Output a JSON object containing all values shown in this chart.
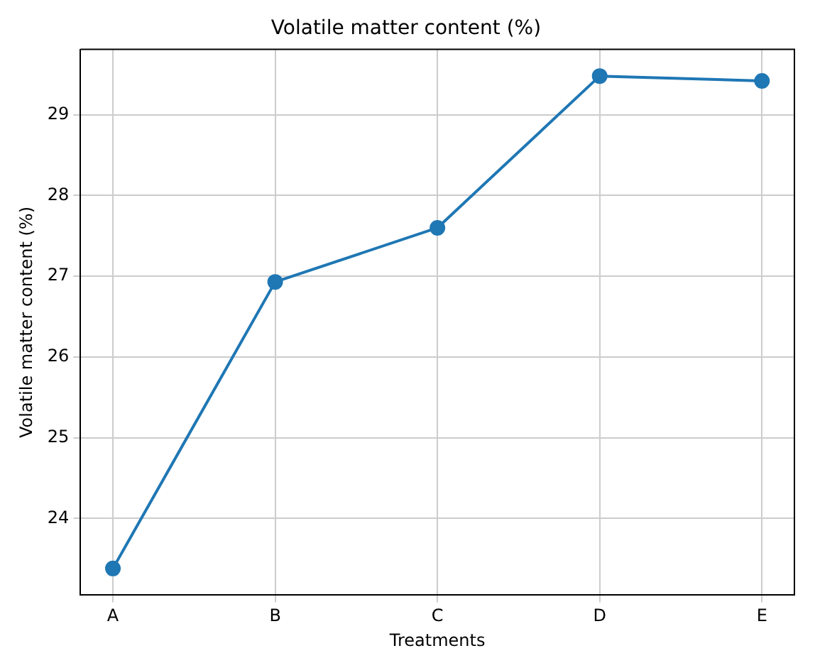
{
  "chart_data": {
    "type": "line",
    "title": "Volatile matter content (%)",
    "xlabel": "Treatments",
    "ylabel": "Volatile matter content (%)",
    "categories": [
      "A",
      "B",
      "C",
      "D",
      "E"
    ],
    "series": [
      {
        "color": "#1f77b4",
        "values": [
          23.38,
          26.93,
          27.6,
          29.48,
          29.42
        ]
      }
    ],
    "ylim": [
      23.05,
      29.81
    ],
    "yticks": [
      24,
      25,
      26,
      27,
      28,
      29
    ],
    "grid": true,
    "legend": false,
    "marker": "circle",
    "line_style": "solid"
  }
}
